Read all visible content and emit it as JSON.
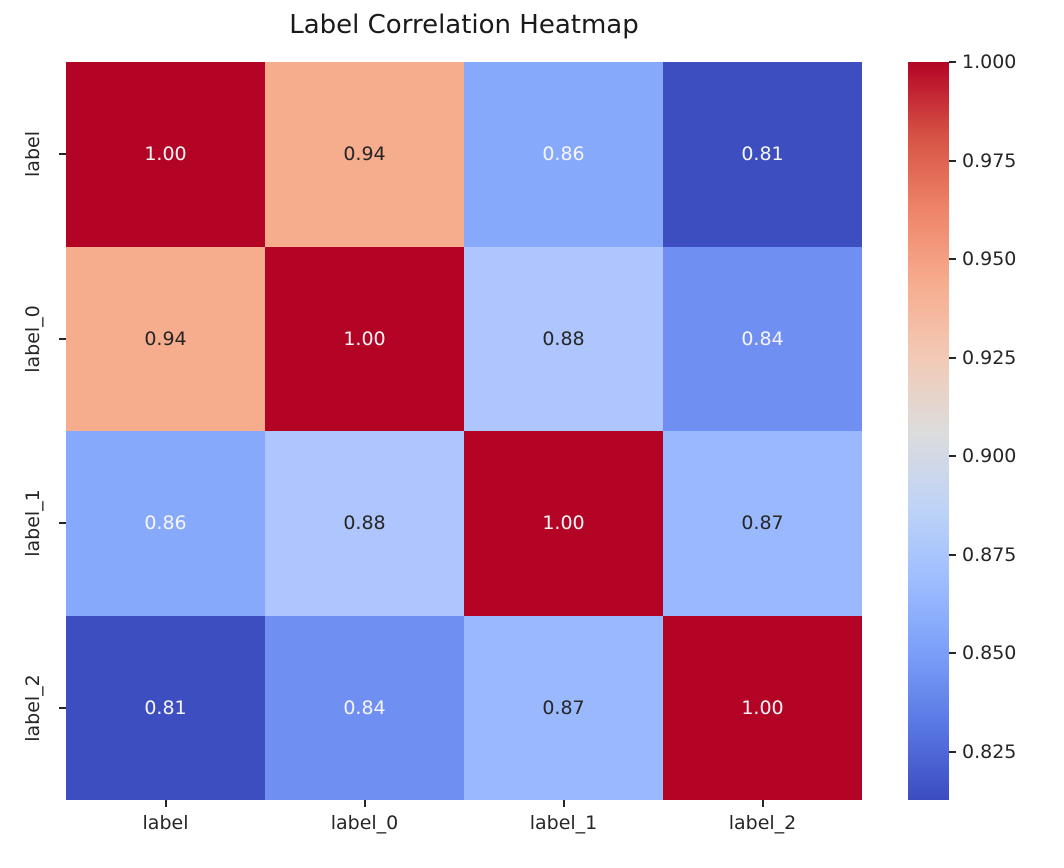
{
  "chart_data": {
    "type": "heatmap",
    "title": "Label Correlation Heatmap",
    "x_categories": [
      "label",
      "label_0",
      "label_1",
      "label_2"
    ],
    "y_categories": [
      "label",
      "label_0",
      "label_1",
      "label_2"
    ],
    "matrix": [
      [
        1.0,
        0.94,
        0.86,
        0.81
      ],
      [
        0.94,
        1.0,
        0.88,
        0.84
      ],
      [
        0.86,
        0.88,
        1.0,
        0.87
      ],
      [
        0.81,
        0.84,
        0.87,
        1.0
      ]
    ],
    "cell_labels": [
      [
        "1.00",
        "0.94",
        "0.86",
        "0.81"
      ],
      [
        "0.94",
        "1.00",
        "0.88",
        "0.84"
      ],
      [
        "0.86",
        "0.88",
        "1.00",
        "0.87"
      ],
      [
        "0.81",
        "0.84",
        "0.87",
        "1.00"
      ]
    ],
    "cell_colors": [
      [
        "#b40426",
        "#f5ad8e",
        "#86a9fc",
        "#3d4fc0"
      ],
      [
        "#f5ad8e",
        "#b40426",
        "#aec6fd",
        "#6f8ff2"
      ],
      [
        "#86a9fc",
        "#aec6fd",
        "#b40426",
        "#9ab8fd"
      ],
      [
        "#3d4fc0",
        "#6f8ff2",
        "#9ab8fd",
        "#b40426"
      ]
    ],
    "cell_text_tone": [
      [
        "light",
        "dark",
        "light",
        "light"
      ],
      [
        "dark",
        "light",
        "dark",
        "light"
      ],
      [
        "light",
        "dark",
        "light",
        "dark"
      ],
      [
        "light",
        "light",
        "dark",
        "light"
      ]
    ],
    "annot_colors": {
      "light": "#f7f4f4",
      "dark": "#262626"
    },
    "colormap": {
      "name": "coolwarm",
      "stops": [
        [
          0.0,
          "#3b4cc0"
        ],
        [
          0.1,
          "#5977e3"
        ],
        [
          0.2,
          "#7b9ff9"
        ],
        [
          0.3,
          "#9ebeff"
        ],
        [
          0.4,
          "#c0d4f5"
        ],
        [
          0.5,
          "#dddcdc"
        ],
        [
          0.6,
          "#f2cab5"
        ],
        [
          0.7,
          "#f7ac8e"
        ],
        [
          0.8,
          "#ee8468"
        ],
        [
          0.9,
          "#d65244"
        ],
        [
          1.0,
          "#b40426"
        ]
      ]
    },
    "colorbar": {
      "position": "right",
      "tick_labels": [
        "1.000",
        "0.975",
        "0.950",
        "0.925",
        "0.900",
        "0.875",
        "0.850",
        "0.825"
      ],
      "tick_values": [
        1.0,
        0.975,
        0.95,
        0.925,
        0.9,
        0.875,
        0.85,
        0.825
      ],
      "vmin": 0.8127,
      "vmax": 1.0
    },
    "grid": false,
    "background": "#ffffff"
  }
}
